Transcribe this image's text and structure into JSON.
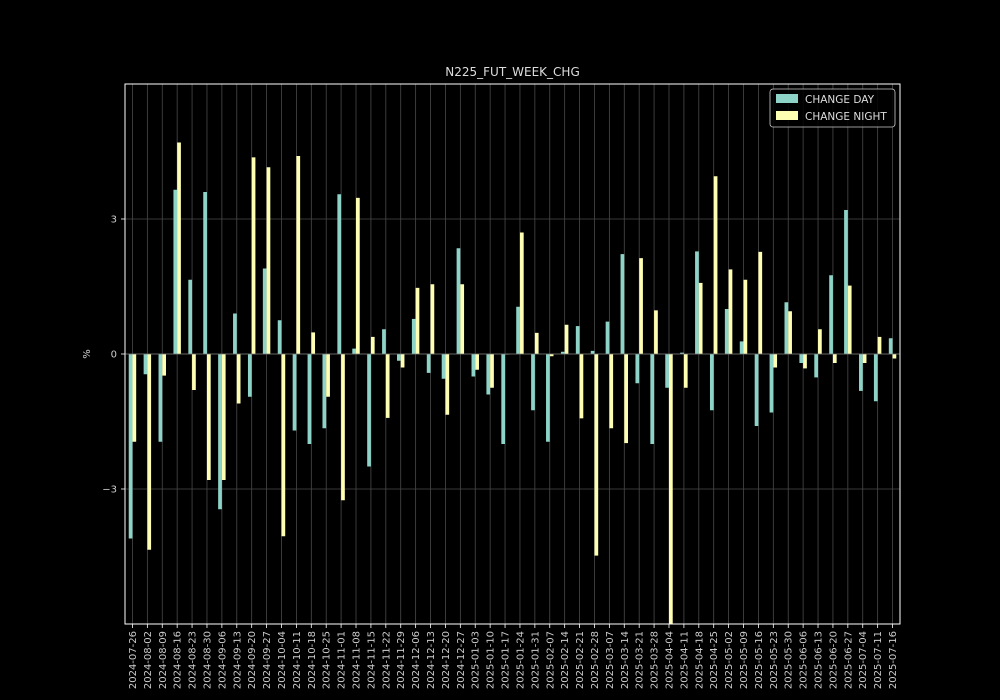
{
  "chart_data": {
    "type": "bar",
    "title": "N225_FUT_WEEK_CHG",
    "ylabel": "%",
    "xlabel": "",
    "ylim": [
      -6,
      6
    ],
    "yticks": [
      -3,
      0,
      3
    ],
    "ytick_labels": [
      "−3",
      "0",
      "3"
    ],
    "grid": true,
    "legend_position": "top-right",
    "categories": [
      "2024-07-26",
      "2024-08-02",
      "2024-08-09",
      "2024-08-16",
      "2024-08-23",
      "2024-08-30",
      "2024-09-06",
      "2024-09-13",
      "2024-09-20",
      "2024-09-27",
      "2024-10-04",
      "2024-10-11",
      "2024-10-18",
      "2024-10-25",
      "2024-11-01",
      "2024-11-08",
      "2024-11-15",
      "2024-11-22",
      "2024-11-29",
      "2024-12-06",
      "2024-12-13",
      "2024-12-20",
      "2024-12-27",
      "2025-01-03",
      "2025-01-10",
      "2025-01-17",
      "2025-01-24",
      "2025-01-31",
      "2025-02-07",
      "2025-02-14",
      "2025-02-21",
      "2025-02-28",
      "2025-03-07",
      "2025-03-14",
      "2025-03-21",
      "2025-03-28",
      "2025-04-04",
      "2025-04-11",
      "2025-04-18",
      "2025-04-25",
      "2025-05-02",
      "2025-05-09",
      "2025-05-16",
      "2025-05-23",
      "2025-05-30",
      "2025-06-06",
      "2025-06-13",
      "2025-06-20",
      "2025-06-27",
      "2025-07-04",
      "2025-07-11",
      "2025-07-16"
    ],
    "series": [
      {
        "name": "CHANGE DAY",
        "color": "#8dd3c7",
        "values": [
          -4.1,
          -0.45,
          -1.95,
          3.65,
          1.65,
          3.6,
          -3.45,
          0.9,
          -0.95,
          1.9,
          0.75,
          -1.7,
          -2.0,
          -1.65,
          3.55,
          0.12,
          -2.5,
          0.55,
          -0.15,
          0.78,
          -0.42,
          -0.55,
          2.35,
          -0.5,
          -0.9,
          -2.0,
          1.05,
          -1.25,
          -1.95,
          0.05,
          0.62,
          0.07,
          0.72,
          2.22,
          -0.65,
          -2.0,
          -0.75,
          0.03,
          2.28,
          -1.25,
          1.0,
          0.28,
          -1.6,
          -1.3,
          1.15,
          -0.2,
          -0.52,
          1.75,
          3.2,
          -0.82,
          -1.05,
          0.35
        ]
      },
      {
        "name": "CHANGE NIGHT",
        "color": "#ffffb3",
        "values": [
          -1.95,
          -4.35,
          -0.48,
          4.7,
          -0.8,
          -2.8,
          -2.8,
          -1.1,
          4.37,
          4.15,
          -4.05,
          4.4,
          0.48,
          -0.95,
          -3.25,
          3.47,
          0.38,
          -1.42,
          -0.3,
          1.47,
          1.55,
          -1.35,
          1.55,
          -0.35,
          -0.75,
          0.0,
          2.7,
          0.47,
          -0.05,
          0.65,
          -1.43,
          -4.48,
          -1.65,
          -1.98,
          2.13,
          0.97,
          -6.05,
          -0.75,
          1.58,
          3.95,
          1.88,
          1.65,
          2.27,
          -0.3,
          0.95,
          -0.32,
          0.55,
          -0.2,
          1.52,
          -0.2,
          0.38,
          -0.1
        ]
      }
    ]
  }
}
